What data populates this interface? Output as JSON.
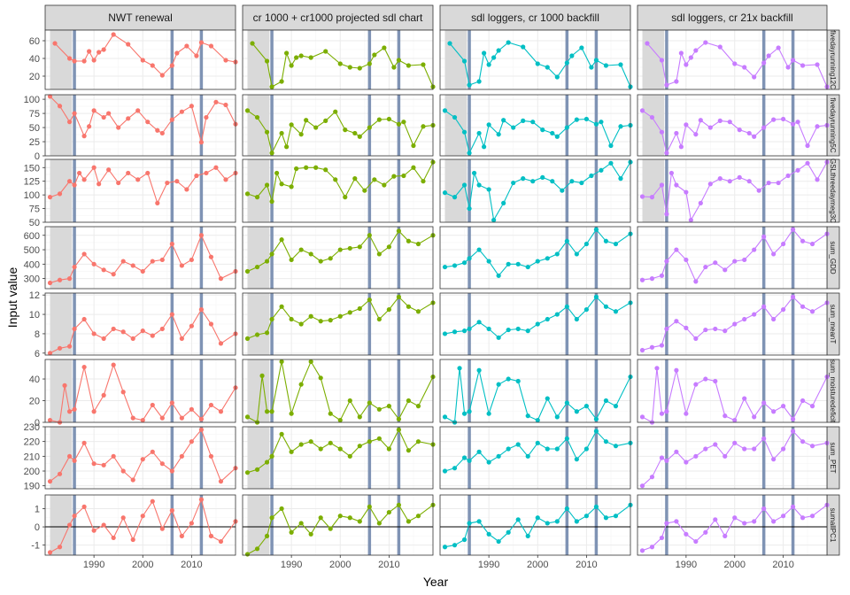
{
  "chart_data": {
    "type": "line",
    "xlabel": "Year",
    "ylabel": "Input value",
    "xlim": [
      1980,
      2019
    ],
    "x_ticks": [
      1990,
      2000,
      2010
    ],
    "vertical_lines": [
      1986,
      2006,
      2012
    ],
    "shaded_region": [
      1981,
      1985.5
    ],
    "columns": [
      {
        "name": "NWT renewal",
        "color": "#F8766D",
        "shade_rows": "all"
      },
      {
        "name": "cr 1000 + cr1000 projected sdl chart",
        "color": "#7CAE00",
        "shade_rows": "all"
      },
      {
        "name": "sdl loggers, cr 1000 backfill",
        "color": "#00BFC4",
        "shade_rows": [
          0,
          1,
          2
        ]
      },
      {
        "name": "sdl loggers, cr 21x backfill",
        "color": "#C77CFF",
        "shade_rows": [
          0,
          1,
          2
        ]
      }
    ],
    "rows": [
      {
        "name": "fivedayrunning12C",
        "ylim": [
          5,
          72
        ],
        "ticks": [
          20,
          40,
          60
        ],
        "zero_line": false,
        "x": [
          1982,
          1985,
          1986,
          1988,
          1989,
          1990,
          1991,
          1992,
          1994,
          1997,
          2000,
          2002,
          2004,
          2006,
          2007,
          2009,
          2011,
          2012,
          2014,
          2017,
          2019
        ],
        "series": [
          [
            57,
            40,
            37,
            37,
            48,
            38,
            47,
            50,
            67,
            56,
            38,
            32,
            21,
            32,
            46,
            54,
            43,
            58,
            54,
            38,
            36
          ],
          [
            57,
            37,
            8,
            14,
            46,
            32,
            41,
            43,
            41,
            48,
            34,
            30,
            29,
            34,
            44,
            52,
            30,
            38,
            32,
            33,
            8
          ],
          [
            57,
            37,
            10,
            14,
            46,
            33,
            41,
            49,
            58,
            53,
            34,
            30,
            19,
            35,
            43,
            52,
            30,
            38,
            32,
            33,
            8
          ],
          [
            57,
            38,
            10,
            14,
            46,
            33,
            41,
            49,
            58,
            53,
            34,
            30,
            19,
            35,
            43,
            52,
            30,
            38,
            32,
            33,
            8
          ]
        ]
      },
      {
        "name": "fivedayrunning5C",
        "ylim": [
          0,
          108
        ],
        "ticks": [
          0,
          25,
          50,
          75,
          100
        ],
        "zero_line": false,
        "x": [
          1981,
          1983,
          1985,
          1986,
          1988,
          1989,
          1990,
          1992,
          1993,
          1995,
          1997,
          1999,
          2001,
          2003,
          2004,
          2006,
          2008,
          2010,
          2012,
          2013,
          2015,
          2017,
          2019
        ],
        "series": [
          [
            105,
            88,
            60,
            75,
            35,
            52,
            80,
            68,
            75,
            50,
            66,
            80,
            60,
            45,
            40,
            64,
            78,
            88,
            24,
            68,
            95,
            90,
            56
          ],
          [
            80,
            68,
            42,
            5,
            40,
            16,
            55,
            38,
            63,
            50,
            62,
            78,
            46,
            40,
            34,
            50,
            64,
            65,
            56,
            60,
            18,
            52,
            54
          ],
          [
            80,
            68,
            42,
            5,
            40,
            16,
            55,
            38,
            63,
            50,
            62,
            60,
            46,
            40,
            34,
            50,
            64,
            65,
            56,
            60,
            18,
            52,
            54
          ],
          [
            80,
            68,
            42,
            5,
            40,
            16,
            55,
            38,
            63,
            50,
            62,
            60,
            46,
            40,
            34,
            50,
            64,
            65,
            56,
            60,
            18,
            52,
            54
          ]
        ]
      },
      {
        "name": "GSLthreedaymeg3C",
        "ylim": [
          50,
          165
        ],
        "ticks": [
          50,
          75,
          100,
          125,
          150
        ],
        "zero_line": false,
        "x": [
          1981,
          1983,
          1985,
          1986,
          1987,
          1988,
          1990,
          1991,
          1993,
          1995,
          1997,
          1999,
          2001,
          2003,
          2005,
          2007,
          2009,
          2011,
          2013,
          2015,
          2017,
          2019
        ],
        "series": [
          [
            96,
            102,
            125,
            118,
            140,
            128,
            150,
            120,
            146,
            122,
            140,
            128,
            140,
            85,
            122,
            125,
            110,
            135,
            140,
            150,
            128,
            140
          ],
          [
            102,
            96,
            118,
            88,
            140,
            120,
            115,
            148,
            150,
            150,
            146,
            128,
            96,
            130,
            108,
            128,
            118,
            134,
            135,
            150,
            125,
            160
          ],
          [
            104,
            96,
            118,
            75,
            140,
            118,
            110,
            54,
            85,
            122,
            130,
            125,
            132,
            125,
            108,
            125,
            122,
            135,
            145,
            158,
            130,
            160
          ],
          [
            97,
            96,
            118,
            65,
            140,
            118,
            105,
            54,
            85,
            120,
            130,
            125,
            132,
            125,
            108,
            122,
            122,
            135,
            145,
            158,
            128,
            160
          ]
        ]
      },
      {
        "name": "sum_GDD",
        "ylim": [
          230,
          660
        ],
        "ticks": [
          300,
          400,
          500,
          600
        ],
        "zero_line": false,
        "x": [
          1981,
          1983,
          1985,
          1986,
          1988,
          1990,
          1992,
          1994,
          1996,
          1998,
          2000,
          2002,
          2004,
          2006,
          2008,
          2010,
          2012,
          2014,
          2016,
          2019
        ],
        "series": [
          [
            270,
            290,
            300,
            380,
            470,
            400,
            360,
            330,
            420,
            390,
            350,
            420,
            430,
            540,
            390,
            430,
            600,
            450,
            300,
            350
          ],
          [
            350,
            380,
            420,
            470,
            570,
            430,
            500,
            470,
            420,
            440,
            500,
            510,
            520,
            600,
            470,
            520,
            630,
            560,
            540,
            600
          ],
          [
            380,
            390,
            410,
            440,
            500,
            420,
            320,
            400,
            400,
            380,
            420,
            440,
            470,
            560,
            470,
            540,
            640,
            560,
            540,
            610
          ],
          [
            290,
            300,
            320,
            420,
            500,
            430,
            280,
            380,
            410,
            360,
            420,
            430,
            500,
            590,
            470,
            540,
            640,
            560,
            540,
            610
          ]
        ]
      },
      {
        "name": "sum_meanT",
        "ylim": [
          5.8,
          12.2
        ],
        "ticks": [
          6,
          8,
          10,
          12
        ],
        "zero_line": false,
        "x": [
          1981,
          1983,
          1985,
          1986,
          1988,
          1990,
          1992,
          1994,
          1996,
          1998,
          2000,
          2002,
          2004,
          2006,
          2008,
          2010,
          2012,
          2014,
          2016,
          2019
        ],
        "series": [
          [
            6,
            6.5,
            6.7,
            8.5,
            9.5,
            8,
            7.5,
            8.5,
            8.2,
            7.5,
            8.3,
            7.8,
            8.5,
            10,
            7.5,
            8.8,
            10.5,
            9,
            7,
            8
          ],
          [
            7.5,
            7.9,
            8.1,
            9.5,
            10.8,
            9.5,
            9,
            9.8,
            9.3,
            9.4,
            9.8,
            10.2,
            10.6,
            11.5,
            9.5,
            10.5,
            11.8,
            10.8,
            10.3,
            11.2
          ],
          [
            8,
            8.2,
            8.3,
            8.5,
            9.2,
            8.5,
            7.6,
            8.4,
            8.5,
            8.3,
            9,
            9.5,
            10,
            10.8,
            9.5,
            10.5,
            11.8,
            10.8,
            10.3,
            11.2
          ],
          [
            6.3,
            6.6,
            6.8,
            8.5,
            9.3,
            8.6,
            7.5,
            8.4,
            8.5,
            8.3,
            9,
            9.5,
            10,
            10.8,
            9.5,
            10.5,
            11.8,
            10.8,
            10.3,
            11.2
          ]
        ]
      },
      {
        "name": "sum_moisturedeficit",
        "ylim": [
          0,
          58
        ],
        "ticks": [
          0,
          20,
          40
        ],
        "zero_line": false,
        "x": [
          1981,
          1983,
          1984,
          1985,
          1986,
          1988,
          1990,
          1992,
          1994,
          1996,
          1998,
          2000,
          2002,
          2004,
          2006,
          2008,
          2010,
          2012,
          2014,
          2016,
          2019
        ],
        "series": [
          [
            2,
            0,
            34,
            10,
            12,
            51,
            10,
            25,
            53,
            28,
            4,
            2,
            16,
            4,
            18,
            4,
            12,
            3,
            16,
            10,
            32
          ],
          [
            5,
            0,
            43,
            10,
            10,
            56,
            8,
            35,
            56,
            41,
            8,
            2,
            20,
            5,
            18,
            12,
            15,
            3,
            20,
            15,
            42
          ],
          [
            5,
            0,
            50,
            8,
            10,
            48,
            8,
            35,
            40,
            38,
            6,
            2,
            22,
            5,
            18,
            10,
            15,
            3,
            20,
            15,
            42
          ],
          [
            5,
            0,
            50,
            8,
            10,
            48,
            8,
            35,
            40,
            38,
            6,
            2,
            22,
            5,
            18,
            10,
            15,
            3,
            20,
            15,
            42
          ]
        ]
      },
      {
        "name": "sum_PET",
        "ylim": [
          188,
          230
        ],
        "ticks": [
          190,
          200,
          210,
          220,
          230
        ],
        "zero_line": false,
        "x": [
          1981,
          1983,
          1985,
          1986,
          1988,
          1990,
          1992,
          1994,
          1996,
          1998,
          2000,
          2002,
          2004,
          2006,
          2008,
          2010,
          2012,
          2014,
          2016,
          2019
        ],
        "series": [
          [
            193,
            198,
            210,
            207,
            219,
            205,
            204,
            210,
            200,
            194,
            208,
            213,
            205,
            200,
            210,
            220,
            228,
            210,
            193,
            202
          ],
          [
            199,
            201,
            206,
            210,
            225,
            213,
            218,
            220,
            215,
            219,
            215,
            210,
            217,
            220,
            222,
            215,
            228,
            214,
            220,
            218
          ],
          [
            200,
            202,
            209,
            207,
            213,
            206,
            210,
            215,
            218,
            210,
            219,
            215,
            215,
            222,
            208,
            215,
            227,
            220,
            217,
            219
          ],
          [
            190,
            196,
            209,
            207,
            213,
            206,
            210,
            215,
            218,
            210,
            219,
            215,
            215,
            222,
            208,
            215,
            227,
            220,
            217,
            219
          ]
        ]
      },
      {
        "name": "sumallPC1",
        "ylim": [
          -1.55,
          1.75
        ],
        "ticks": [
          -1,
          0,
          1
        ],
        "zero_line": true,
        "x": [
          1981,
          1983,
          1985,
          1986,
          1988,
          1990,
          1992,
          1994,
          1996,
          1998,
          2000,
          2002,
          2004,
          2006,
          2008,
          2010,
          2012,
          2014,
          2016,
          2019
        ],
        "series": [
          [
            -1.4,
            -1.1,
            0.1,
            0.6,
            1.1,
            -0.2,
            0.1,
            -0.6,
            0.5,
            -0.7,
            0.6,
            1.4,
            -0.1,
            0.9,
            -0.5,
            0.2,
            1.5,
            -0.5,
            -0.8,
            0.3
          ],
          [
            -1.5,
            -1.2,
            -0.5,
            0.5,
            1,
            -0.3,
            0.2,
            -0.4,
            0.5,
            -0.1,
            0.6,
            0.5,
            0.3,
            1.1,
            0.2,
            0.8,
            1.2,
            0.3,
            0.6,
            1.2
          ],
          [
            -1.1,
            -1,
            -0.7,
            0.2,
            0.3,
            -0.4,
            -0.8,
            -0.3,
            0.4,
            -0.5,
            0.5,
            0.2,
            0.3,
            1,
            0.3,
            0.6,
            1.1,
            0.5,
            0.6,
            1.2
          ],
          [
            -1.3,
            -1.1,
            -0.6,
            0.2,
            0.3,
            -0.4,
            -0.8,
            -0.3,
            0.4,
            -0.5,
            0.5,
            0.2,
            0.3,
            1,
            0.3,
            0.6,
            1.1,
            0.5,
            0.6,
            1.2
          ]
        ]
      }
    ]
  },
  "colors": {
    "strip_fill": "#d9d9d9",
    "panel_border": "#333333",
    "grid_major": "#ebebeb",
    "grid_minor": "#f5f5f5",
    "shade": "#d9d9d9",
    "vline": "#7f93b4",
    "zero_line": "#000000"
  }
}
